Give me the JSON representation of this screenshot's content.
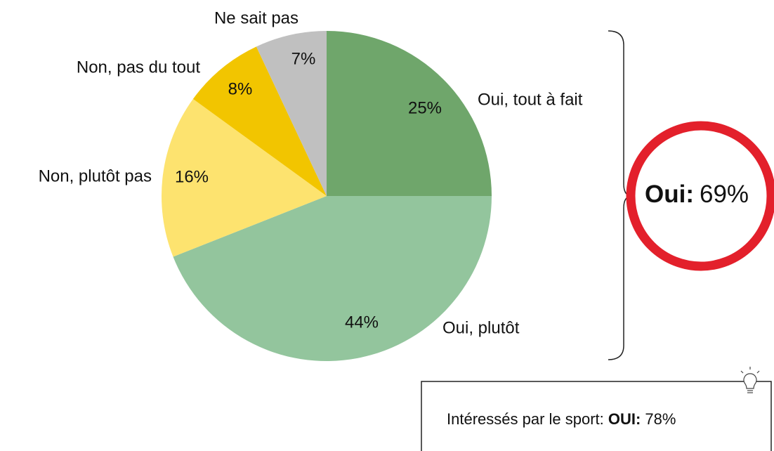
{
  "chart_data": {
    "type": "pie",
    "categories": [
      "Oui, tout à fait",
      "Oui, plutôt",
      "Non, plutôt pas",
      "Non, pas du tout",
      "Ne sait pas"
    ],
    "values": [
      25,
      44,
      16,
      8,
      7
    ],
    "value_labels": [
      "25%",
      "44%",
      "16%",
      "8%",
      "7%"
    ],
    "colors": [
      "#6fa66b",
      "#93c59d",
      "#fde36f",
      "#f2c500",
      "#c0c0c0"
    ],
    "annotations": [
      {
        "label": "Oui:",
        "value": "69%"
      }
    ],
    "note": {
      "text": "Intéressés par le sport: ",
      "emphasis": "OUI:",
      "value": "78%"
    }
  }
}
